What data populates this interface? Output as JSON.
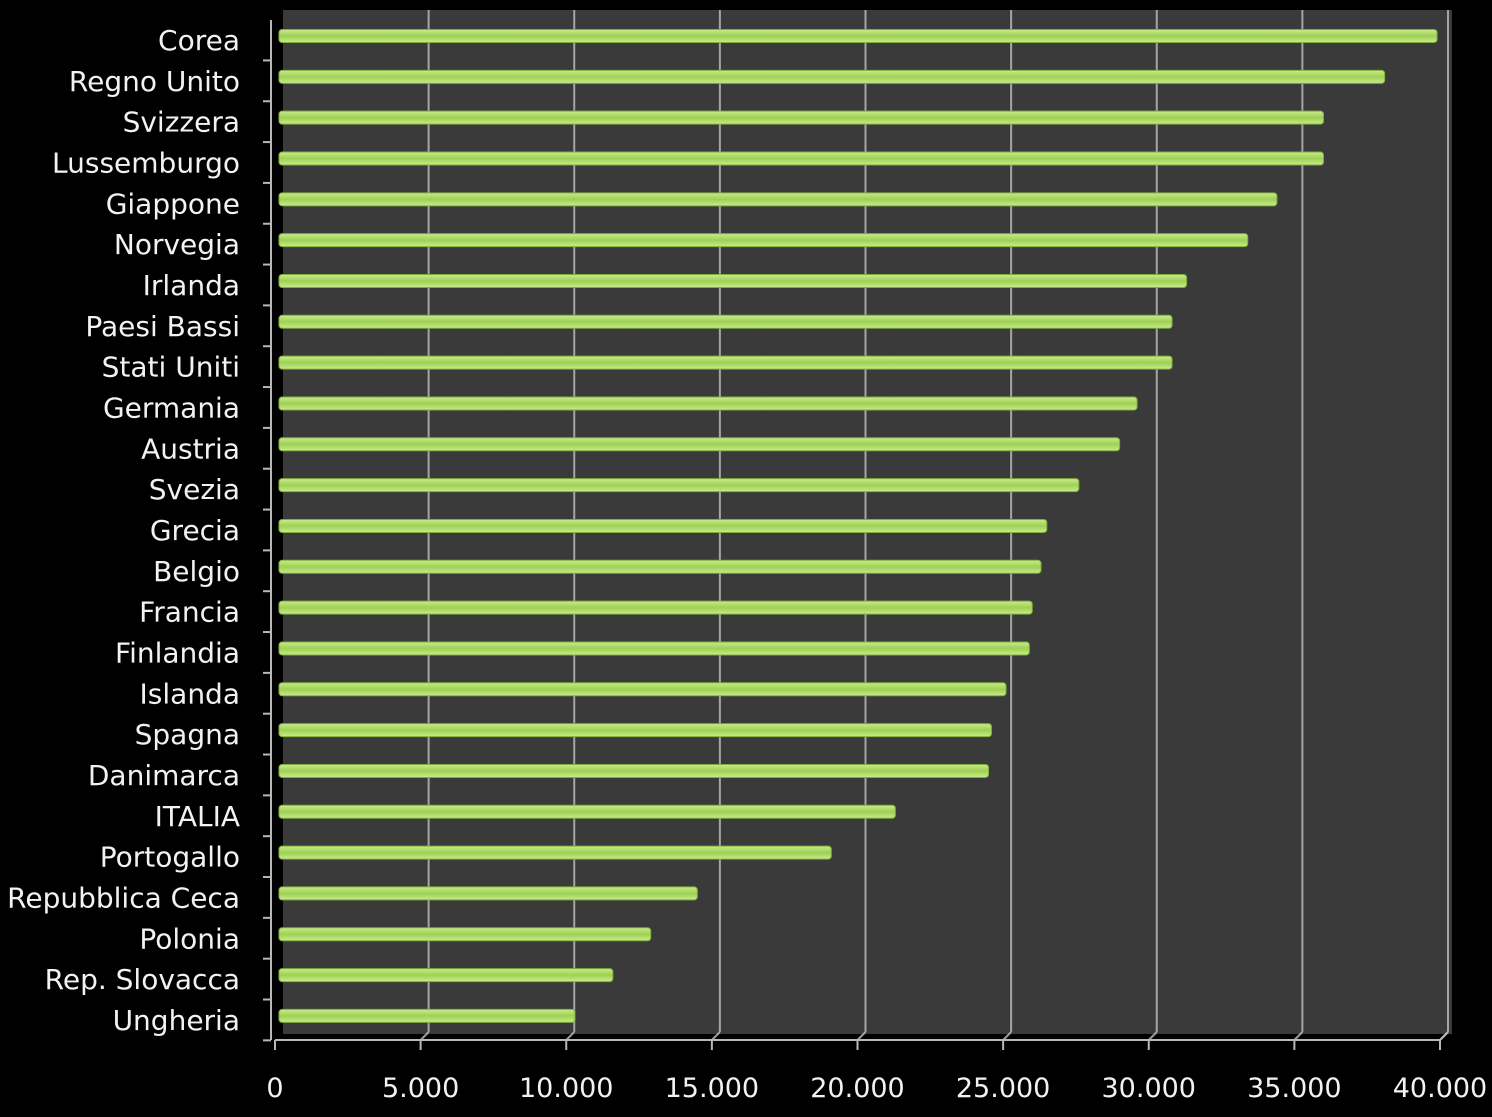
{
  "chart_data": {
    "type": "bar",
    "orientation": "horizontal",
    "title": "",
    "xlabel": "",
    "ylabel": "",
    "categories": [
      "Corea",
      "Regno Unito",
      "Svizzera",
      "Lussemburgo",
      "Giappone",
      "Norvegia",
      "Irlanda",
      "Paesi Bassi",
      "Stati Uniti",
      "Germania",
      "Austria",
      "Svezia",
      "Grecia",
      "Belgio",
      "Francia",
      "Finlandia",
      "Islanda",
      "Spagna",
      "Danimarca",
      "ITALIA",
      "Portogallo",
      "Repubblica Ceca",
      "Polonia",
      "Rep. Slovacca",
      "Ungheria"
    ],
    "values": [
      39900,
      38100,
      36000,
      36000,
      34400,
      33400,
      31300,
      30800,
      30800,
      29600,
      29000,
      27600,
      26500,
      26300,
      26000,
      25900,
      25100,
      24600,
      24500,
      21300,
      19100,
      14500,
      12900,
      11600,
      10300
    ],
    "xlim": [
      0,
      40000
    ],
    "xticks": [
      0,
      5000,
      10000,
      15000,
      20000,
      25000,
      30000,
      35000,
      40000
    ],
    "xtick_labels": [
      "0",
      "5.000",
      "10.000",
      "15.000",
      "20.000",
      "25.000",
      "30.000",
      "35.000",
      "40.000"
    ],
    "grid": true,
    "legend": "none",
    "colors": {
      "bar": "#9fd055",
      "bar_highlight": "#c8ec8a",
      "plot_background": "#3a3a3a",
      "page_background": "#000000",
      "grid": "#b8b8b8",
      "text": "#f2f2f2"
    }
  }
}
